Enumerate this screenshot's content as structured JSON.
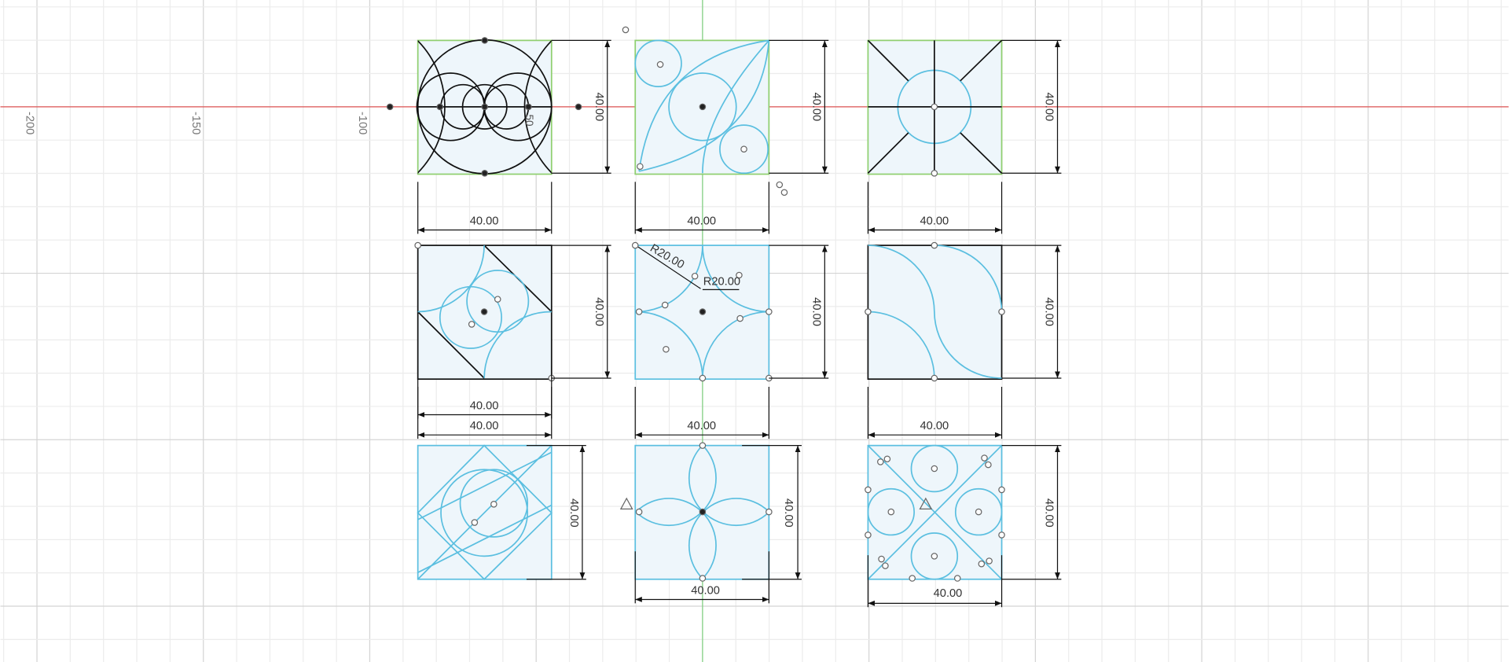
{
  "axis_labels": [
    "-200",
    "-150",
    "-100"
  ],
  "dimensions": [
    "40.00",
    "40.00",
    "40.00",
    "40.00",
    "40.00",
    "40.00",
    "40.00",
    "40.00",
    "40.00",
    "R20.00",
    "R20.00",
    "40.00",
    "40.00",
    "40.00",
    "40.00",
    "40.00",
    "40.00",
    "40.00",
    "40.00",
    "40.00"
  ],
  "partial_label": "50"
}
